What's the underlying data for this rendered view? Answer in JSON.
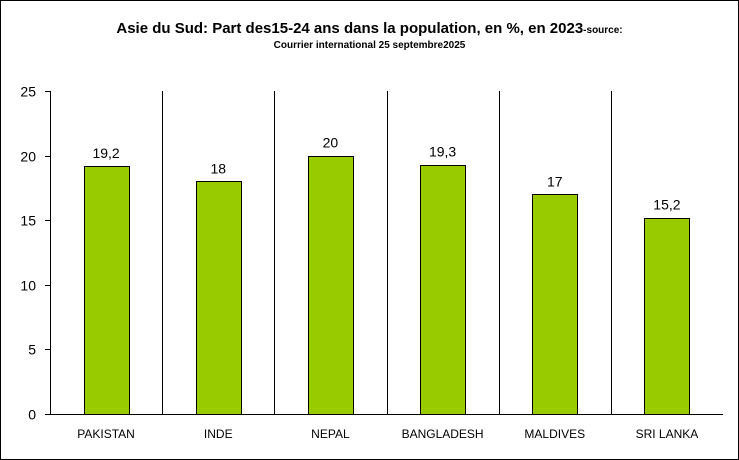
{
  "chart_data": {
    "type": "bar",
    "title": "Asie du Sud: Part des15-24 ans dans la population, en %, en 2023",
    "title_suffix": "-source:",
    "subtitle": "Courrier international 25 septembre2025",
    "categories": [
      "PAKISTAN",
      "INDE",
      "NEPAL",
      "BANGLADESH",
      "MALDIVES",
      "SRI LANKA"
    ],
    "values": [
      19.2,
      18,
      20,
      19.3,
      17,
      15.2
    ],
    "data_labels": [
      "19,2",
      "18",
      "20",
      "19,3",
      "17",
      "15,2"
    ],
    "xlabel": "",
    "ylabel": "",
    "ylim": [
      0,
      25
    ],
    "yticks": [
      0,
      5,
      10,
      15,
      20,
      25
    ],
    "bar_color": "#99cc00",
    "grid": "vertical separators between categories",
    "legend": "none"
  }
}
